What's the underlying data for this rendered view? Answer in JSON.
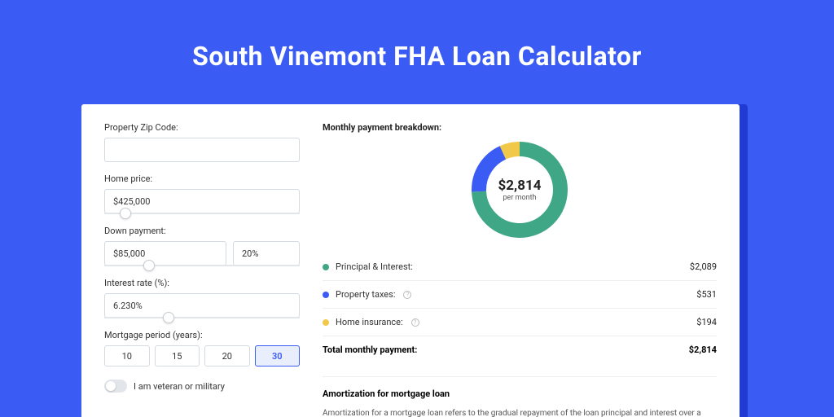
{
  "colors": {
    "page_bg": "#3b5bf5",
    "card_bg": "#ffffff",
    "shadow_bg": "#1f3bd1",
    "principal": "#3fa786",
    "taxes": "#3b5bf5",
    "insurance": "#f2c84b",
    "border": "#d5d9e0",
    "text": "#333333"
  },
  "title": "South Vinemont FHA Loan Calculator",
  "form": {
    "zip": {
      "label": "Property Zip Code:",
      "value": ""
    },
    "price": {
      "label": "Home price:",
      "value": "$425,000",
      "slider_pct": 8
    },
    "down": {
      "label": "Down payment:",
      "amount": "$85,000",
      "percent": "20%",
      "slider_pct": 20
    },
    "rate": {
      "label": "Interest rate (%):",
      "value": "6.230%",
      "slider_pct": 30
    },
    "period": {
      "label": "Mortgage period (years):",
      "options": [
        "10",
        "15",
        "20",
        "30"
      ],
      "selected": "30"
    },
    "veteran": {
      "label": "I am veteran or military",
      "on": false
    }
  },
  "breakdown": {
    "heading": "Monthly payment breakdown:",
    "donut": {
      "value": "$2,814",
      "sub": "per month",
      "segments": [
        {
          "key": "principal",
          "color": "#3fa786",
          "fraction": 0.742
        },
        {
          "key": "taxes",
          "color": "#3b5bf5",
          "fraction": 0.189
        },
        {
          "key": "insurance",
          "color": "#f2c84b",
          "fraction": 0.069
        }
      ],
      "stroke_width": 18
    },
    "rows": [
      {
        "label": "Principal & Interest:",
        "value": "$2,089",
        "dot": "#3fa786",
        "info": false
      },
      {
        "label": "Property taxes:",
        "value": "$531",
        "dot": "#3b5bf5",
        "info": true
      },
      {
        "label": "Home insurance:",
        "value": "$194",
        "dot": "#f2c84b",
        "info": true
      }
    ],
    "total": {
      "label": "Total monthly payment:",
      "value": "$2,814"
    }
  },
  "amortization": {
    "title": "Amortization for mortgage loan",
    "body": "Amortization for a mortgage loan refers to the gradual repayment of the loan principal and interest over a specified"
  }
}
